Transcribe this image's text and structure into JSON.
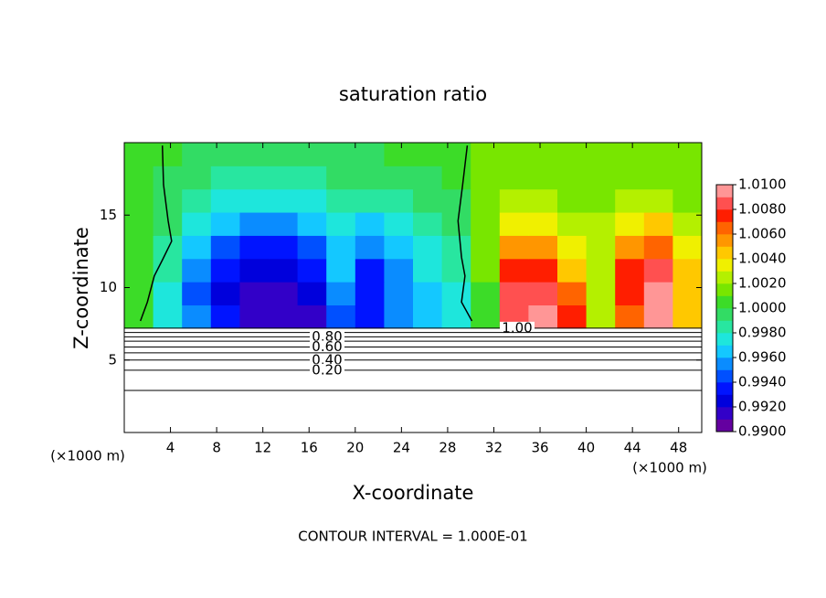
{
  "chart_data": {
    "type": "contour",
    "title": "saturation ratio",
    "x_label": "X-coordinate",
    "y_label": "Z-coordinate",
    "axis_unit": "(×1000 m)",
    "footnote": "CONTOUR INTERVAL = 1.000E-01",
    "xlim": [
      0,
      50
    ],
    "ylim": [
      0,
      20
    ],
    "xticks": [
      4,
      8,
      12,
      16,
      20,
      24,
      28,
      32,
      36,
      40,
      44,
      48
    ],
    "yticks": [
      5,
      10,
      15
    ],
    "field": {
      "x": [
        1.25,
        3.75,
        6.25,
        8.75,
        11.25,
        13.75,
        16.25,
        18.75,
        21.25,
        23.75,
        26.25,
        28.75,
        31.25,
        33.75,
        36.25,
        38.75,
        41.25,
        43.75,
        46.25,
        48.75
      ],
      "y": [
        8,
        9.6,
        11.2,
        12.8,
        14.4,
        16,
        17.6,
        19.2
      ],
      "z": [
        [
          1.0,
          0.997,
          0.995,
          0.993,
          0.991,
          0.991,
          0.991,
          0.994,
          0.993,
          0.995,
          0.996,
          0.997,
          1.0,
          1.008,
          1.009,
          1.007,
          1.002,
          1.006,
          1.009,
          1.004
        ],
        [
          1.0,
          0.997,
          0.994,
          0.992,
          0.991,
          0.991,
          0.992,
          0.995,
          0.993,
          0.995,
          0.996,
          0.997,
          1.0,
          1.008,
          1.008,
          1.006,
          1.002,
          1.007,
          1.009,
          1.004
        ],
        [
          1.0,
          0.998,
          0.995,
          0.993,
          0.992,
          0.992,
          0.993,
          0.996,
          0.993,
          0.995,
          0.997,
          0.998,
          1.001,
          1.007,
          1.007,
          1.004,
          1.002,
          1.007,
          1.008,
          1.004
        ],
        [
          1.0,
          0.998,
          0.996,
          0.994,
          0.993,
          0.993,
          0.994,
          0.996,
          0.995,
          0.996,
          0.997,
          0.998,
          1.001,
          1.005,
          1.005,
          1.003,
          1.002,
          1.005,
          1.006,
          1.003
        ],
        [
          1.0,
          0.999,
          0.997,
          0.996,
          0.995,
          0.995,
          0.996,
          0.997,
          0.996,
          0.997,
          0.998,
          0.999,
          1.001,
          1.003,
          1.003,
          1.002,
          1.002,
          1.003,
          1.004,
          1.002
        ],
        [
          1.0,
          0.999,
          0.998,
          0.997,
          0.997,
          0.997,
          0.997,
          0.998,
          0.998,
          0.998,
          0.999,
          0.999,
          1.001,
          1.002,
          1.002,
          1.001,
          1.001,
          1.002,
          1.002,
          1.001
        ],
        [
          1.0,
          0.999,
          0.999,
          0.998,
          0.998,
          0.998,
          0.998,
          0.999,
          0.999,
          0.999,
          0.999,
          1.0,
          1.001,
          1.001,
          1.001,
          1.001,
          1.001,
          1.001,
          1.001,
          1.001
        ],
        [
          1.0,
          1.0,
          0.999,
          0.999,
          0.999,
          0.999,
          0.999,
          0.999,
          0.999,
          1.0,
          1.0,
          1.0,
          1.001,
          1.001,
          1.001,
          1.001,
          1.001,
          1.001,
          1.001,
          1.001
        ]
      ]
    },
    "colorbar": {
      "clim": [
        0.99,
        1.01
      ],
      "colors": [
        "#6400a0",
        "#3200c8",
        "#0000dc",
        "#0014ff",
        "#0050ff",
        "#0a8cff",
        "#14c8ff",
        "#1ee6dc",
        "#28e6a0",
        "#32dc64",
        "#3cdc28",
        "#78e600",
        "#b4f000",
        "#f0f000",
        "#ffc800",
        "#ff9600",
        "#ff6400",
        "#ff1e00",
        "#ff5050",
        "#ff9696"
      ],
      "ticks": [
        {
          "value": 0.99,
          "label": "0.9900"
        },
        {
          "value": 0.992,
          "label": "0.9920"
        },
        {
          "value": 0.994,
          "label": "0.9940"
        },
        {
          "value": 0.996,
          "label": "0.9960"
        },
        {
          "value": 0.998,
          "label": "0.9980"
        },
        {
          "value": 1.0,
          "label": "1.0000"
        },
        {
          "value": 1.002,
          "label": "1.0020"
        },
        {
          "value": 1.004,
          "label": "1.0040"
        },
        {
          "value": 1.006,
          "label": "1.0060"
        },
        {
          "value": 1.008,
          "label": "1.0080"
        },
        {
          "value": 1.01,
          "label": "1.0100"
        }
      ]
    },
    "contour_levels": [
      {
        "level": 1.0,
        "label": "1.00",
        "y": 7.2
      },
      {
        "level": 0.9,
        "y": 6.9
      },
      {
        "level": 0.8,
        "label": "0.80",
        "y": 6.6
      },
      {
        "level": 0.7,
        "y": 6.3
      },
      {
        "level": 0.6,
        "label": "0.60",
        "y": 5.9
      },
      {
        "level": 0.5,
        "y": 5.5
      },
      {
        "level": 0.4,
        "label": "0.40",
        "y": 5.0
      },
      {
        "level": 0.2,
        "label": "0.20",
        "y": 4.3
      },
      {
        "level": 0.1,
        "y": 2.9
      }
    ],
    "boundary_lines": [
      {
        "x": [
          3.3,
          3.4,
          3.8,
          4.1,
          3.3,
          2.6,
          2.0,
          1.4
        ],
        "y": [
          19.8,
          17.1,
          14.6,
          13.2,
          11.9,
          10.8,
          9.0,
          7.7
        ]
      },
      {
        "x": [
          29.7,
          29.3,
          28.9,
          29.2,
          29.5,
          29.2,
          30.1
        ],
        "y": [
          19.8,
          17.1,
          14.6,
          12.1,
          10.8,
          9.0,
          7.7
        ]
      }
    ]
  }
}
